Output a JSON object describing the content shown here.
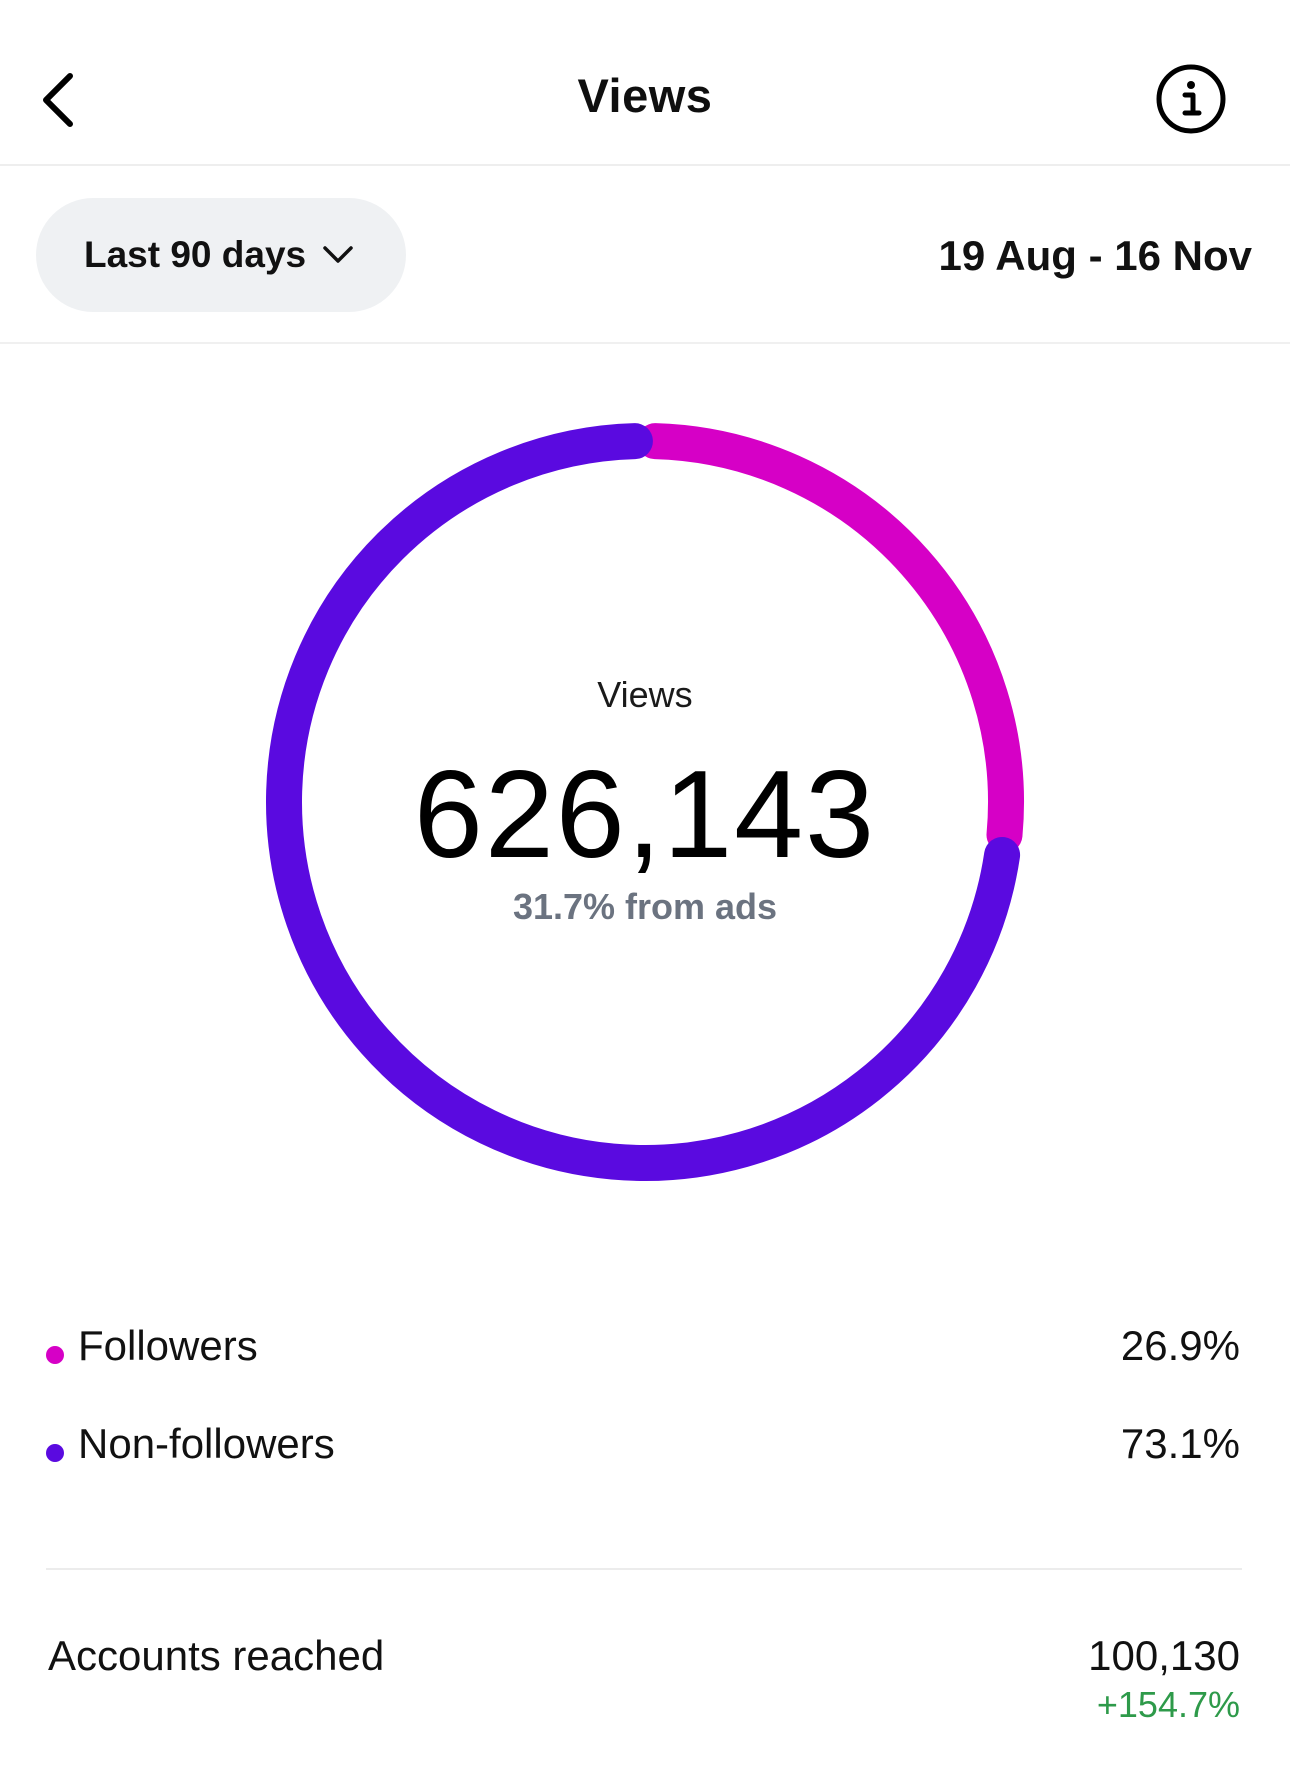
{
  "header": {
    "title": "Views",
    "back_icon": "chevron-left-icon",
    "info_icon": "info-icon"
  },
  "filter": {
    "range_label": "Last 90 days",
    "range_icon": "chevron-down-icon",
    "date_range": "19 Aug - 16 Nov"
  },
  "summary": {
    "label": "Views",
    "value": "626,143",
    "subtext": "31.7% from ads"
  },
  "chart_data": {
    "type": "pie",
    "categories": [
      "Followers",
      "Non-followers"
    ],
    "values": [
      26.9,
      73.1
    ],
    "colors": [
      "#d600c6",
      "#5a0ae0"
    ]
  },
  "legend": [
    {
      "label": "Followers",
      "value": "26.9%",
      "color": "#d600c6"
    },
    {
      "label": "Non-followers",
      "value": "73.1%",
      "color": "#5a0ae0"
    }
  ],
  "accounts_reached": {
    "label": "Accounts reached",
    "value": "100,130",
    "change": "+154.7%",
    "change_color": "#2e9a4a"
  }
}
